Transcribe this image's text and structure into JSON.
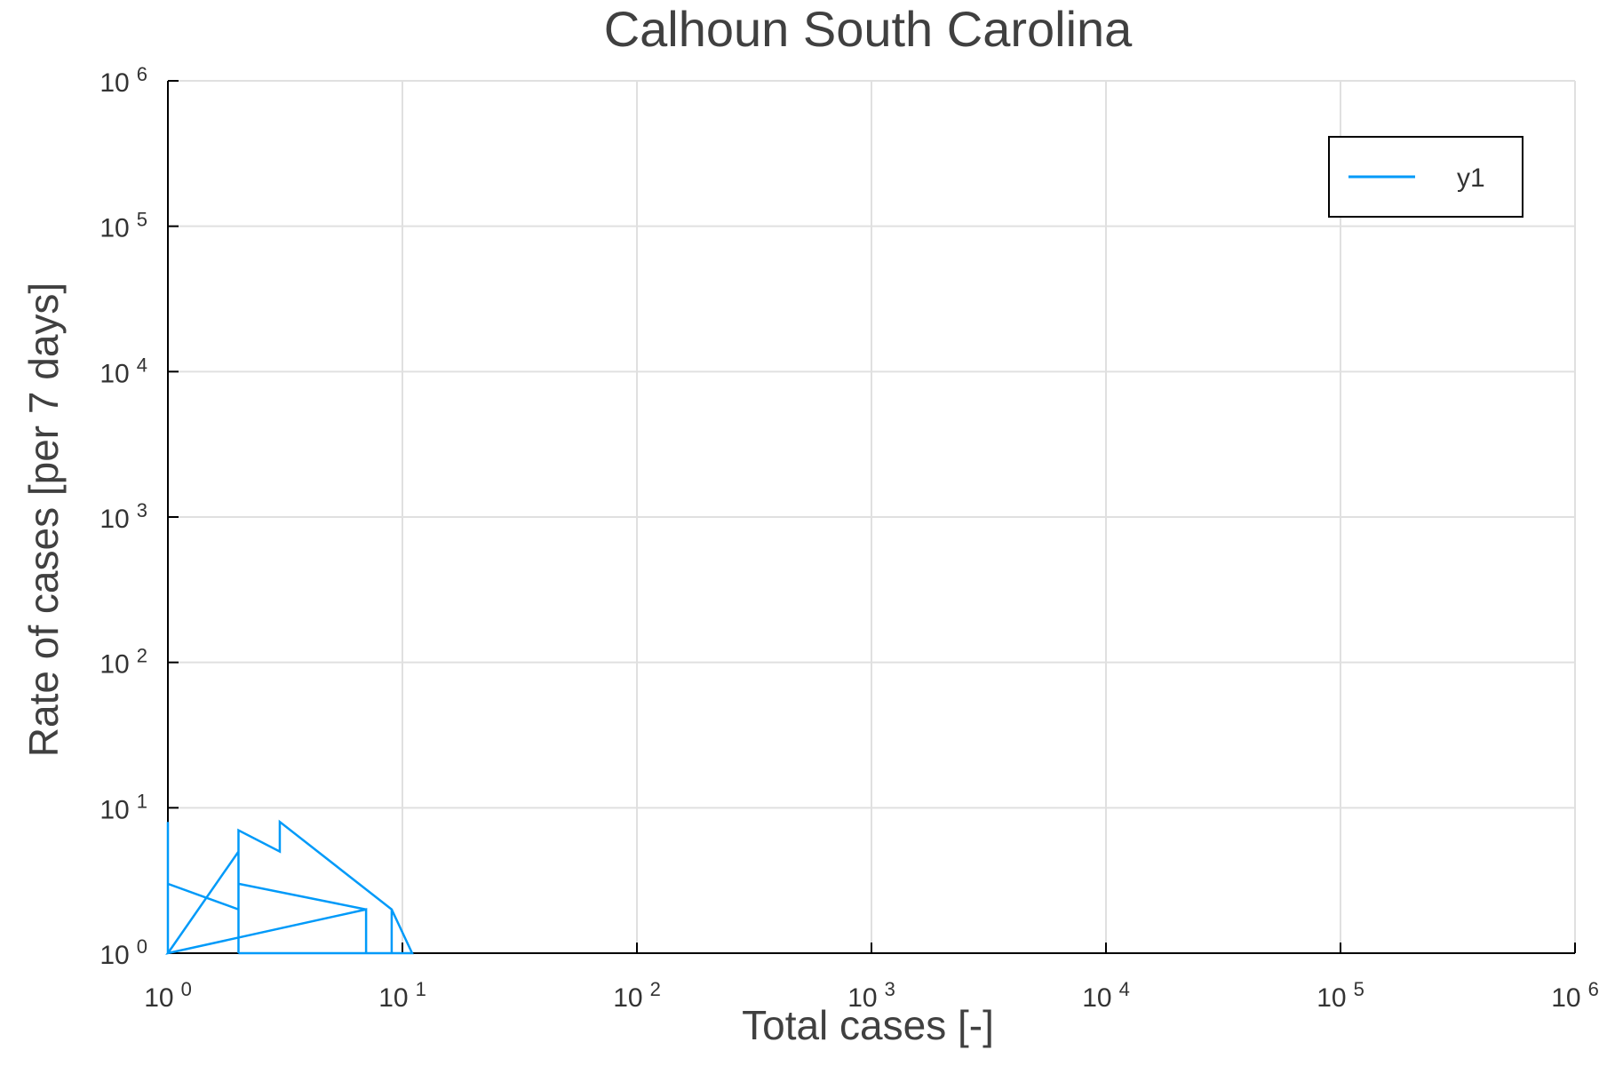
{
  "chart_data": {
    "type": "line",
    "title": "Calhoun South Carolina",
    "xlabel": "Total cases [-]",
    "ylabel": "Rate of cases [per 7 days]",
    "xscale": "log",
    "yscale": "log",
    "xlim": [
      1,
      1000000
    ],
    "ylim": [
      1,
      1000000
    ],
    "grid": true,
    "legend_position": "top-right",
    "x_ticks": [
      {
        "base": "10",
        "exp": "0"
      },
      {
        "base": "10",
        "exp": "1"
      },
      {
        "base": "10",
        "exp": "2"
      },
      {
        "base": "10",
        "exp": "3"
      },
      {
        "base": "10",
        "exp": "4"
      },
      {
        "base": "10",
        "exp": "5"
      },
      {
        "base": "10",
        "exp": "6"
      }
    ],
    "y_ticks": [
      {
        "base": "10",
        "exp": "0"
      },
      {
        "base": "10",
        "exp": "1"
      },
      {
        "base": "10",
        "exp": "2"
      },
      {
        "base": "10",
        "exp": "3"
      },
      {
        "base": "10",
        "exp": "4"
      },
      {
        "base": "10",
        "exp": "5"
      },
      {
        "base": "10",
        "exp": "6"
      }
    ],
    "series": [
      {
        "name": "y1",
        "color": "#009af9",
        "x": [
          1,
          1,
          1,
          2,
          2,
          2,
          1,
          7,
          7,
          7,
          2,
          2,
          3,
          3,
          9,
          9,
          9,
          11,
          11,
          3,
          3,
          2,
          2
        ],
        "y": [
          1,
          8,
          3,
          2,
          1,
          5,
          1,
          2,
          1,
          2,
          3,
          7,
          5,
          8,
          2,
          1,
          2,
          1,
          1,
          1,
          1,
          1,
          1
        ]
      }
    ]
  }
}
